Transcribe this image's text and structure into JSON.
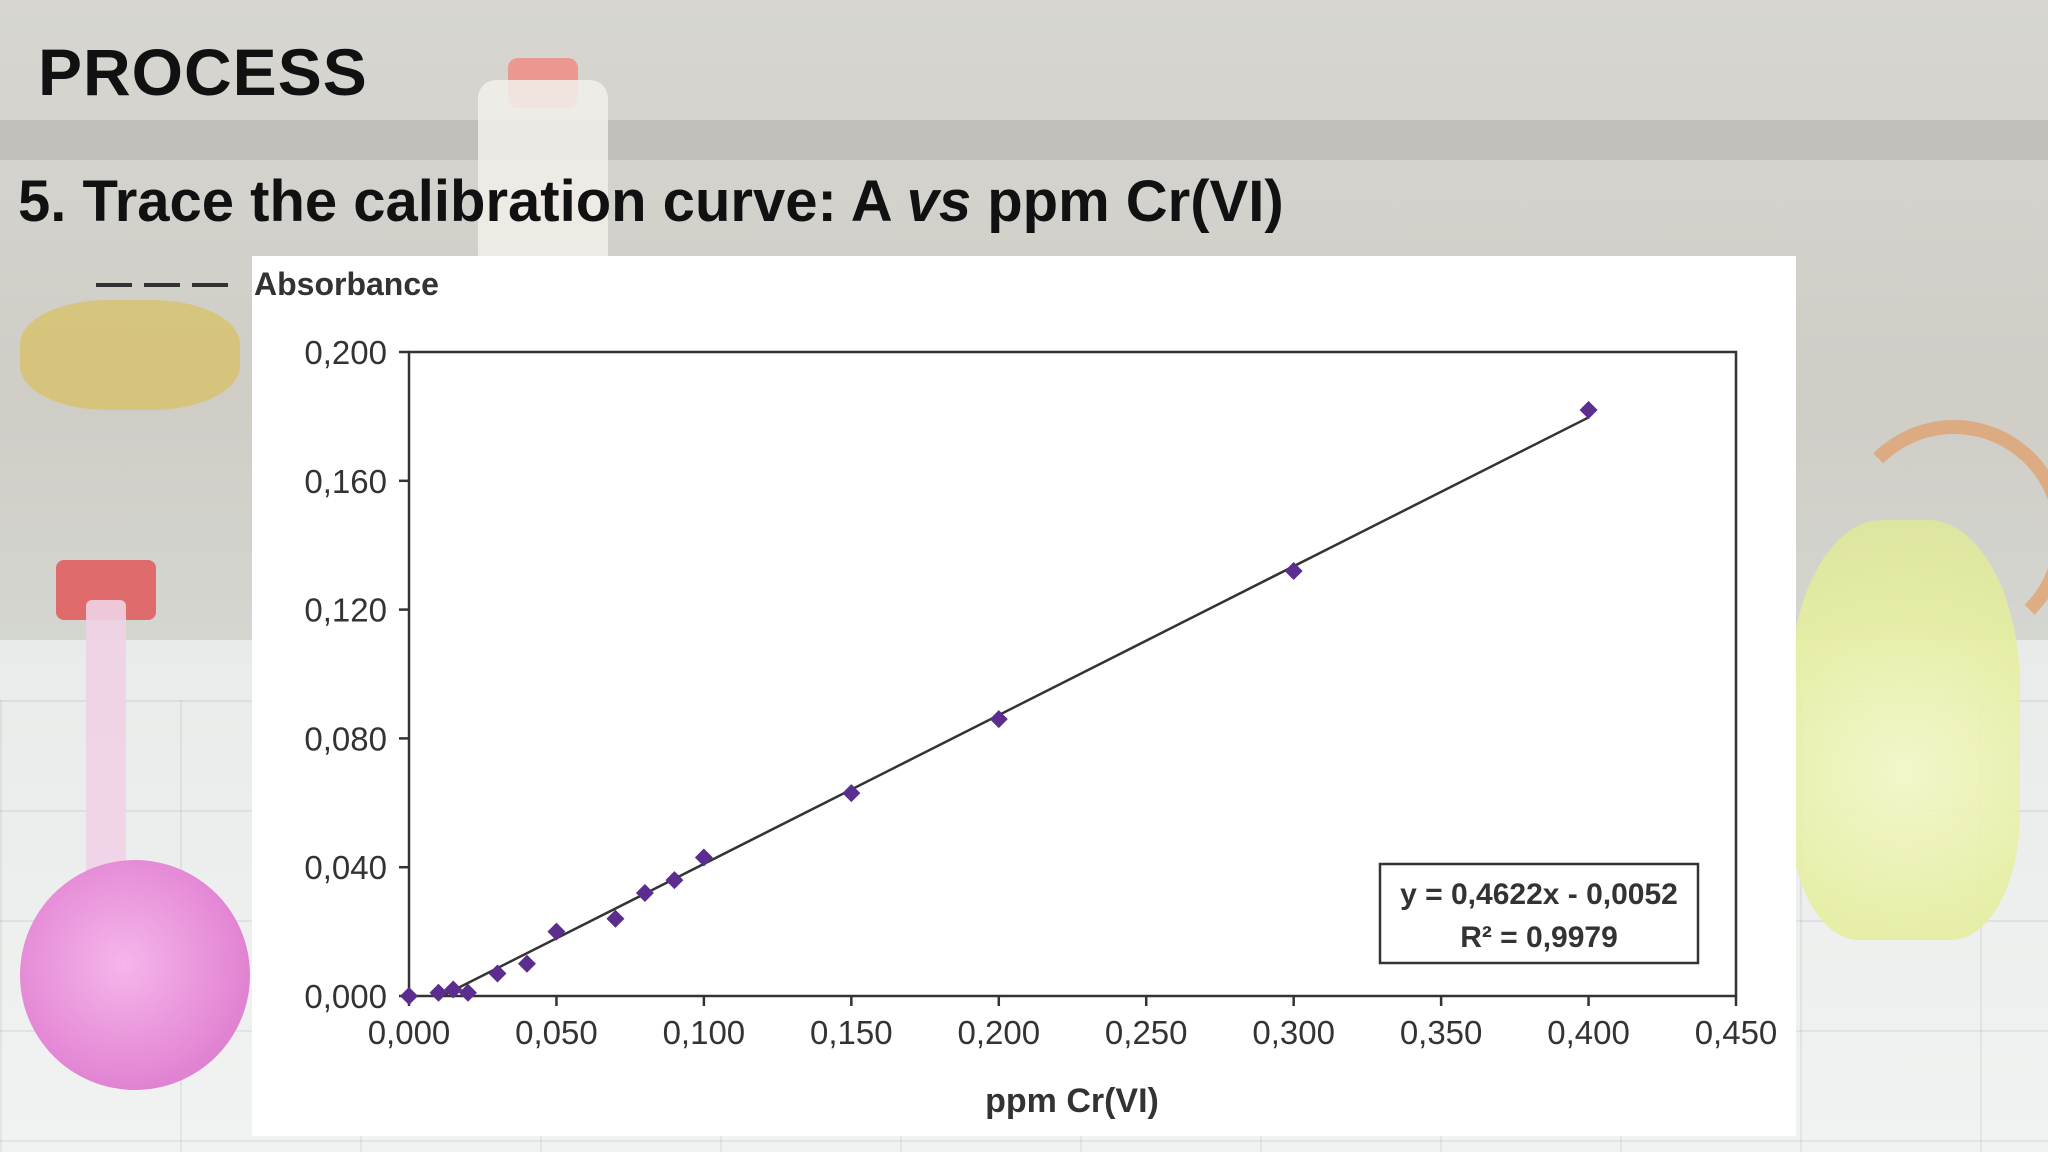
{
  "slide": {
    "title": "PROCESS",
    "subtitle_prefix": "5. Trace the calibration curve: A ",
    "subtitle_italic": "vs",
    "subtitle_suffix": " ppm Cr(VI)"
  },
  "chart_data": {
    "type": "scatter",
    "ylabel": "Absorbance",
    "xlabel": "ppm Cr(VI)",
    "x_ticks": [
      "0,000",
      "0,050",
      "0,100",
      "0,150",
      "0,200",
      "0,250",
      "0,300",
      "0,350",
      "0,400",
      "0,450"
    ],
    "y_ticks": [
      "0,000",
      "0,040",
      "0,080",
      "0,120",
      "0,160",
      "0,200"
    ],
    "xlim": [
      0,
      0.45
    ],
    "ylim": [
      0,
      0.2
    ],
    "grid": false,
    "marker_color": "#5b2d8e",
    "line_color": "#333333",
    "points": [
      {
        "x": 0.0,
        "y": 0.0
      },
      {
        "x": 0.01,
        "y": 0.001
      },
      {
        "x": 0.015,
        "y": 0.002
      },
      {
        "x": 0.02,
        "y": 0.001
      },
      {
        "x": 0.03,
        "y": 0.007
      },
      {
        "x": 0.04,
        "y": 0.01
      },
      {
        "x": 0.05,
        "y": 0.02
      },
      {
        "x": 0.07,
        "y": 0.024
      },
      {
        "x": 0.08,
        "y": 0.032
      },
      {
        "x": 0.09,
        "y": 0.036
      },
      {
        "x": 0.1,
        "y": 0.043
      },
      {
        "x": 0.15,
        "y": 0.063
      },
      {
        "x": 0.2,
        "y": 0.086
      },
      {
        "x": 0.3,
        "y": 0.132
      },
      {
        "x": 0.4,
        "y": 0.182
      }
    ],
    "trendline": {
      "slope": 0.4622,
      "intercept": -0.0052,
      "x_range": [
        0.0,
        0.4
      ],
      "equation": "y = 0,4622x - 0,0052",
      "r2": "R² = 0,9979"
    }
  }
}
